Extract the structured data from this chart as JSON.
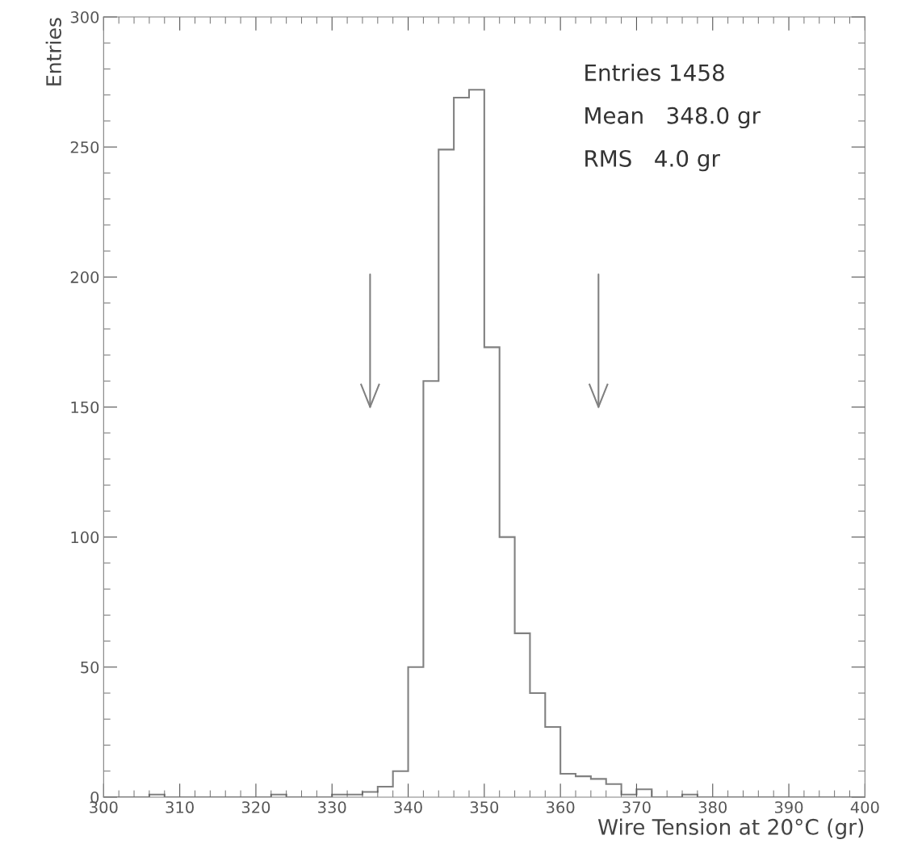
{
  "chart_data": {
    "type": "histogram",
    "xlabel": "Wire Tension at 20°C (gr)",
    "ylabel": "Entries",
    "bins": [
      300,
      302,
      304,
      306,
      308,
      310,
      312,
      314,
      316,
      318,
      320,
      322,
      324,
      326,
      328,
      330,
      332,
      334,
      336,
      338,
      340,
      342,
      344,
      346,
      348,
      350,
      352,
      354,
      356,
      358,
      360,
      362,
      364,
      366,
      368,
      370,
      372,
      374,
      376,
      378,
      380,
      382,
      384,
      386,
      388,
      390,
      392,
      394,
      396,
      398,
      400
    ],
    "values": [
      0,
      0,
      0,
      1,
      0,
      0,
      0,
      0,
      0,
      0,
      0,
      1,
      0,
      0,
      0,
      1,
      1,
      2,
      4,
      10,
      50,
      160,
      249,
      269,
      272,
      173,
      100,
      63,
      40,
      27,
      9,
      8,
      7,
      5,
      1,
      3,
      0,
      0,
      1,
      0,
      0,
      0,
      0,
      0,
      0,
      0,
      0,
      0,
      0,
      0
    ],
    "color": "#808080",
    "xlim": [
      300,
      400
    ],
    "xticks": [
      300,
      310,
      320,
      330,
      340,
      350,
      360,
      370,
      380,
      390,
      400
    ],
    "ylim": [
      0,
      300
    ],
    "yticks": [
      0,
      50,
      100,
      150,
      200,
      250,
      300
    ],
    "ref_lines": [
      {
        "axis": "x",
        "value": 335,
        "color": "#808080"
      },
      {
        "axis": "x",
        "value": 365,
        "color": "#808080"
      }
    ],
    "annotations": [
      "Entries 1458",
      "Mean   348.0 gr",
      "RMS   4.0 gr"
    ],
    "grid": false,
    "legend": false
  }
}
